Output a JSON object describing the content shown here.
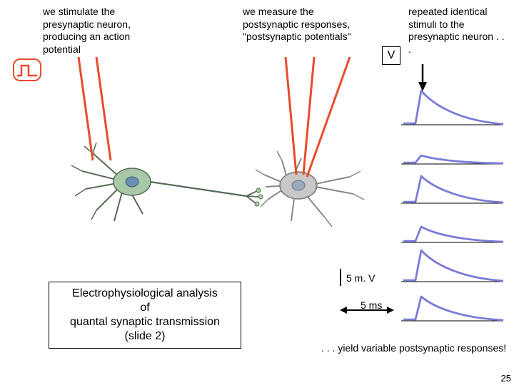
{
  "text_left": "we stimulate the presynaptic neuron, producing an action potential",
  "text_mid": "we measure the postsynaptic responses, \"postsynaptic potentials\"",
  "text_right": "repeated identical stimuli to the presynaptic neuron . . .",
  "v_label": "V",
  "title": "Electrophysiological analysis\nof\nquantal synaptic transmission\n(slide 2)",
  "scale_y": "5 m. V",
  "scale_x": "5 ms",
  "conclusion": ". . . yield variable postsynaptic responses!",
  "page_number": "25",
  "colors": {
    "connector": "#e84c2c",
    "pulse_border": "#e84c2c",
    "trace": "#7b7bd9",
    "neuron_body": "#a8c8a8",
    "neuron_outline": "#556b55",
    "neuron_nucleus": "#6b8fb5",
    "neuron2_body": "#c8c8c8",
    "black": "#000000"
  },
  "traces": {
    "count": 6,
    "peak_heights": [
      48,
      12,
      38,
      22,
      44,
      34
    ]
  }
}
